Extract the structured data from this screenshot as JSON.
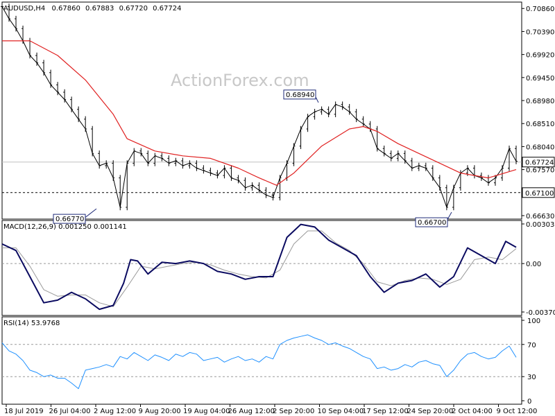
{
  "header": {
    "symbol": "AUDUSD,H4",
    "open": "0.67860",
    "high": "0.67883",
    "low": "0.67720",
    "close": "0.67724"
  },
  "watermark": "ActionForex.com",
  "chart_data": [
    {
      "type": "line",
      "panel": "price",
      "title": "AUDUSD,H4  0.67860 0.67883 0.67720 0.67724",
      "ylim": [
        0.6663,
        0.7092
      ],
      "y_ticks": [
        "0.70860",
        "0.70390",
        "0.69920",
        "0.69450",
        "0.68980",
        "0.68510",
        "0.68040",
        "0.67570",
        "0.66630"
      ],
      "x_tick_labels": [
        "18 Jul 2019",
        "26 Jul 04:00",
        "2 Aug 12:00",
        "9 Aug 20:00",
        "19 Aug 04:00",
        "26 Aug 12:00",
        "2 Sep 20:00",
        "10 Sep 04:00",
        "17 Sep 12:00",
        "24 Sep 20:00",
        "2 Oct 04:00",
        "9 Oct 12:00"
      ],
      "current_price": "0.67724",
      "support_level": "0.67100",
      "annotations": [
        {
          "label": "0.66770",
          "x": "2 Aug 12:00",
          "y": 0.6677
        },
        {
          "label": "0.68940",
          "x": "10 Sep 04:00",
          "y": 0.6894
        },
        {
          "label": "0.66700",
          "x": "2 Oct 04:00",
          "y": 0.667
        }
      ],
      "series": [
        {
          "role": "price",
          "color": "#000000",
          "x": [
            0,
            10,
            20,
            30,
            40,
            50,
            60,
            70,
            80,
            90,
            100,
            110,
            120,
            130,
            140,
            150,
            160,
            170,
            180,
            190,
            200,
            210,
            220,
            230,
            240,
            250,
            260,
            270,
            280,
            290,
            300,
            310,
            320,
            330,
            340,
            350,
            360,
            370,
            380,
            390,
            400,
            410,
            420,
            430,
            440,
            450,
            460,
            470,
            480,
            490,
            500,
            510,
            520,
            530,
            540,
            550,
            560,
            570,
            580,
            590,
            600,
            610,
            620,
            630,
            640,
            650,
            660,
            670,
            680,
            690,
            700,
            710,
            720,
            730,
            740
          ],
          "values": [
            0.709,
            0.7065,
            0.7045,
            0.702,
            0.699,
            0.6975,
            0.6955,
            0.693,
            0.6915,
            0.69,
            0.688,
            0.686,
            0.684,
            0.679,
            0.6765,
            0.677,
            0.674,
            0.668,
            0.677,
            0.6795,
            0.679,
            0.677,
            0.6785,
            0.678,
            0.677,
            0.6775,
            0.6765,
            0.677,
            0.676,
            0.6755,
            0.675,
            0.6745,
            0.676,
            0.674,
            0.6735,
            0.672,
            0.6725,
            0.6715,
            0.6705,
            0.67,
            0.674,
            0.677,
            0.6805,
            0.684,
            0.6865,
            0.6875,
            0.688,
            0.687,
            0.689,
            0.6885,
            0.6875,
            0.686,
            0.685,
            0.684,
            0.68,
            0.679,
            0.678,
            0.679,
            0.6775,
            0.676,
            0.6765,
            0.676,
            0.674,
            0.672,
            0.668,
            0.672,
            0.675,
            0.676,
            0.6745,
            0.674,
            0.673,
            0.674,
            0.676,
            0.68,
            0.6774
          ]
        },
        {
          "role": "moving average",
          "color": "#e02020",
          "x": [
            0,
            40,
            80,
            120,
            160,
            180,
            220,
            260,
            300,
            340,
            370,
            395,
            420,
            460,
            500,
            520,
            540,
            570,
            600,
            630,
            660,
            700,
            740
          ],
          "values": [
            0.702,
            0.702,
            0.699,
            0.694,
            0.687,
            0.682,
            0.6795,
            0.6785,
            0.678,
            0.676,
            0.674,
            0.6725,
            0.675,
            0.6805,
            0.684,
            0.6845,
            0.6835,
            0.681,
            0.679,
            0.677,
            0.675,
            0.674,
            0.6757
          ]
        }
      ]
    },
    {
      "type": "line",
      "panel": "MACD",
      "title": "MACD(12,26,9) 0.001250 0.001141",
      "ylim": [
        -0.003706,
        0.003031
      ],
      "y_ticks": [
        "0.003031",
        "0.00",
        "-0.003706"
      ],
      "series": [
        {
          "role": "macd",
          "color": "#0a0a60",
          "x": [
            0,
            20,
            40,
            60,
            80,
            100,
            120,
            140,
            160,
            175,
            185,
            195,
            210,
            230,
            250,
            270,
            290,
            310,
            330,
            350,
            370,
            390,
            410,
            430,
            450,
            470,
            490,
            510,
            530,
            550,
            570,
            590,
            610,
            630,
            650,
            670,
            690,
            710,
            725,
            740
          ],
          "values": [
            0.0015,
            0.001,
            -0.001,
            -0.003,
            -0.0028,
            -0.0022,
            -0.0027,
            -0.0035,
            -0.0032,
            -0.0015,
            0.0003,
            0.0002,
            -0.0008,
            0.0001,
            0.0,
            0.0002,
            0.0,
            -0.0006,
            -0.0008,
            -0.0012,
            -0.001,
            -0.001,
            0.002,
            0.003,
            0.0028,
            0.0018,
            0.0012,
            0.0006,
            -0.001,
            -0.0022,
            -0.0015,
            -0.0013,
            -0.0008,
            -0.0018,
            -0.001,
            0.0012,
            0.0006,
            0.0,
            0.0017,
            0.00125
          ]
        },
        {
          "role": "signal",
          "color": "#999999",
          "x": [
            0,
            20,
            40,
            60,
            80,
            100,
            120,
            140,
            160,
            180,
            200,
            220,
            240,
            260,
            280,
            300,
            320,
            340,
            360,
            380,
            400,
            420,
            440,
            460,
            480,
            500,
            520,
            540,
            560,
            580,
            600,
            620,
            640,
            660,
            680,
            700,
            720,
            740
          ],
          "values": [
            0.0012,
            0.0012,
            -0.0002,
            -0.002,
            -0.0025,
            -0.0024,
            -0.0024,
            -0.003,
            -0.0033,
            -0.0018,
            -0.0002,
            -0.0004,
            -0.0002,
            0.0,
            0.0001,
            -0.0001,
            -0.0005,
            -0.0008,
            -0.001,
            -0.0011,
            -0.0005,
            0.0015,
            0.0025,
            0.0025,
            0.0016,
            0.001,
            0.0,
            -0.0014,
            -0.0017,
            -0.0013,
            -0.0011,
            -0.0012,
            -0.0016,
            -0.0012,
            0.0003,
            0.0005,
            0.0003,
            0.00114
          ]
        }
      ]
    },
    {
      "type": "line",
      "panel": "RSI",
      "title": "RSI(14) 53.9768",
      "ylim": [
        0,
        100
      ],
      "y_ticks": [
        "100",
        "70",
        "30",
        "0"
      ],
      "levels": [
        70,
        30
      ],
      "series": [
        {
          "role": "rsi",
          "color": "#1e90ff",
          "x": [
            0,
            10,
            20,
            30,
            40,
            50,
            60,
            70,
            80,
            90,
            100,
            110,
            120,
            130,
            140,
            150,
            160,
            170,
            180,
            190,
            200,
            210,
            220,
            230,
            240,
            250,
            260,
            270,
            280,
            290,
            300,
            310,
            320,
            330,
            340,
            350,
            360,
            370,
            380,
            390,
            400,
            410,
            420,
            430,
            440,
            450,
            460,
            470,
            480,
            490,
            500,
            510,
            520,
            530,
            540,
            550,
            560,
            570,
            580,
            590,
            600,
            610,
            620,
            630,
            640,
            650,
            660,
            670,
            680,
            690,
            700,
            710,
            720,
            730,
            740
          ],
          "values": [
            72,
            62,
            58,
            50,
            38,
            35,
            30,
            32,
            28,
            28,
            22,
            15,
            38,
            40,
            42,
            45,
            42,
            55,
            52,
            60,
            55,
            50,
            57,
            54,
            50,
            58,
            55,
            60,
            58,
            50,
            52,
            54,
            48,
            52,
            55,
            50,
            52,
            48,
            55,
            52,
            70,
            75,
            78,
            80,
            82,
            78,
            75,
            70,
            72,
            68,
            65,
            60,
            55,
            52,
            40,
            42,
            38,
            40,
            45,
            42,
            48,
            50,
            46,
            44,
            30,
            38,
            50,
            58,
            60,
            55,
            52,
            54,
            62,
            68,
            54
          ]
        }
      ]
    }
  ],
  "colors": {
    "grid_dash": "#999999",
    "annotation_border": "#1e2a78",
    "price": "#000000",
    "ma": "#e02020",
    "macd": "#0a0a60",
    "signal": "#999999",
    "rsi": "#1e90ff"
  }
}
